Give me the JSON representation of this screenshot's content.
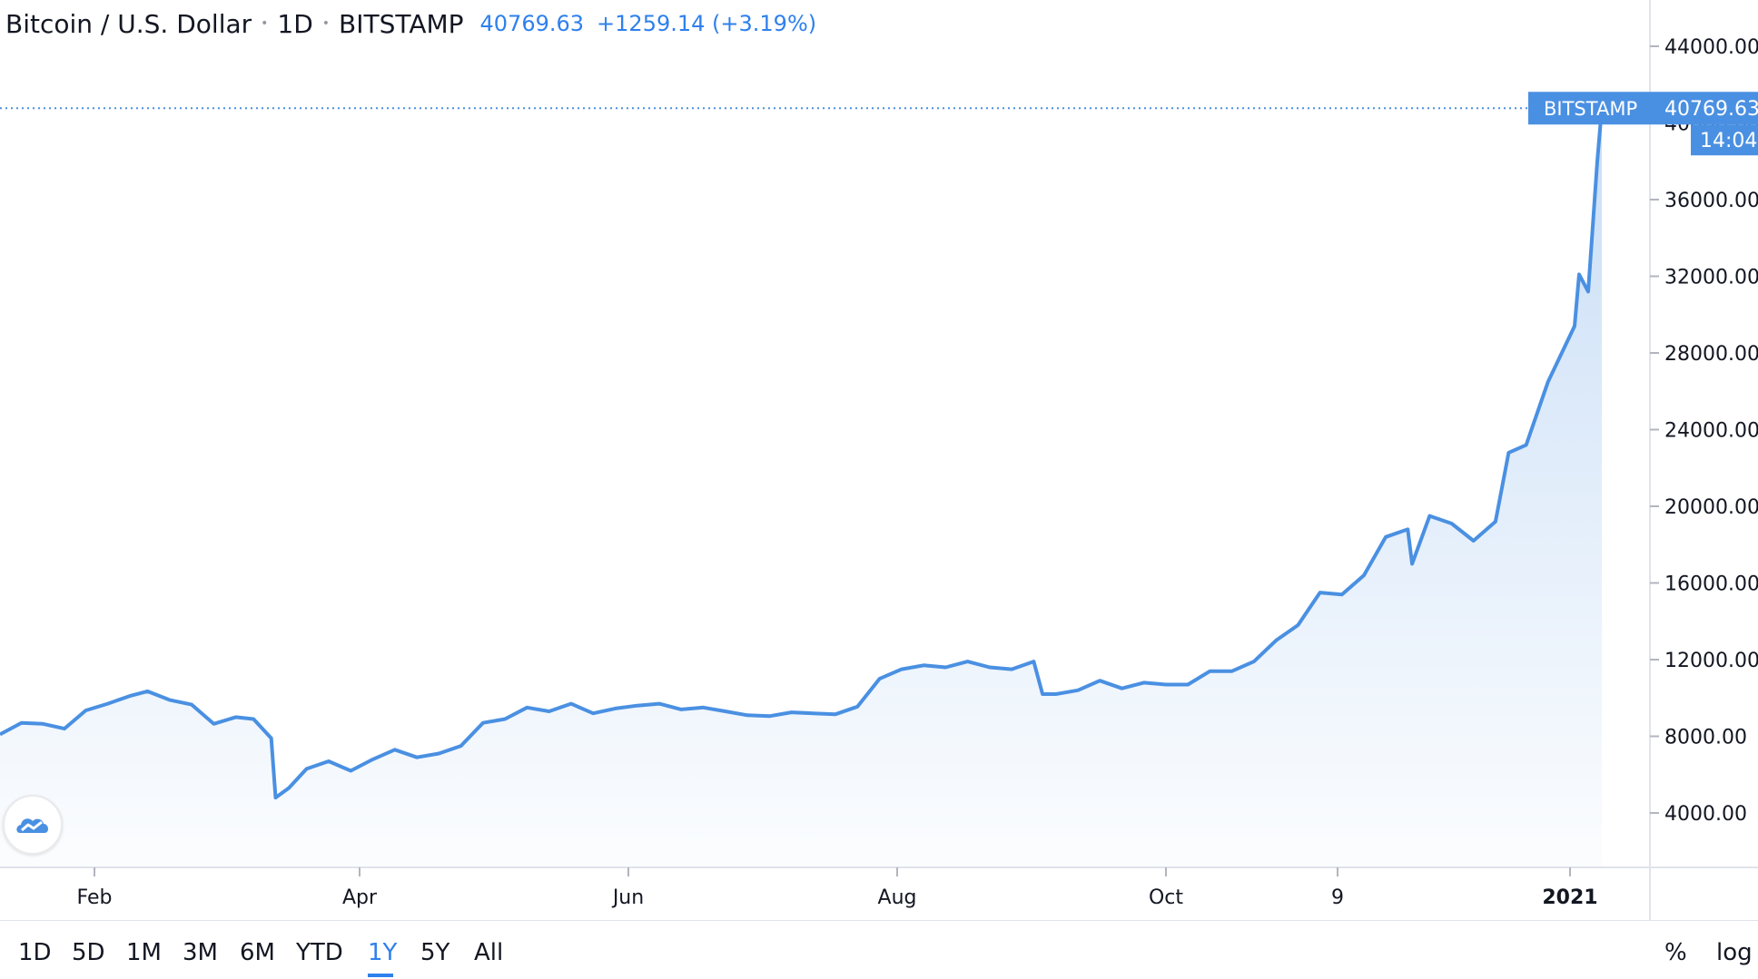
{
  "header": {
    "symbol": "Bitcoin / U.S. Dollar",
    "interval": "1D",
    "exchange": "BITSTAMP",
    "last_price": "40769.63",
    "change": "+1259.14 (+3.19%)"
  },
  "price_label": {
    "exchange": "BITSTAMP",
    "price": "40769.63",
    "countdown": "14:04"
  },
  "range_tabs": [
    "1D",
    "5D",
    "1M",
    "3M",
    "6M",
    "YTD",
    "1Y",
    "5Y",
    "All"
  ],
  "active_range": "1Y",
  "scale_options": {
    "percent": "%",
    "log": "log"
  },
  "colors": {
    "line": "#4a90e2",
    "accent": "#2f80ed",
    "label_bg": "#4a90e2"
  },
  "logo": "tradingview-cloud-icon",
  "chart_data": {
    "type": "area",
    "y_ticks": [
      "44000.00",
      "40000.00",
      "36000.00",
      "32000.00",
      "28000.00",
      "24000.00",
      "20000.00",
      "16000.00",
      "12000.00",
      "8000.00",
      "4000.00"
    ],
    "x_ticks": [
      "Feb",
      "Apr",
      "Jun",
      "Aug",
      "Oct",
      "9",
      "2021"
    ],
    "ylim": [
      1000,
      46500
    ],
    "last_value": 40769.63,
    "x": [
      "2020-01-10",
      "2020-01-15",
      "2020-01-20",
      "2020-01-25",
      "2020-01-30",
      "2020-02-04",
      "2020-02-09",
      "2020-02-13",
      "2020-02-18",
      "2020-02-23",
      "2020-02-28",
      "2020-03-04",
      "2020-03-08",
      "2020-03-12",
      "2020-03-13",
      "2020-03-16",
      "2020-03-20",
      "2020-03-25",
      "2020-03-30",
      "2020-04-04",
      "2020-04-09",
      "2020-04-14",
      "2020-04-19",
      "2020-04-24",
      "2020-04-29",
      "2020-05-04",
      "2020-05-09",
      "2020-05-14",
      "2020-05-19",
      "2020-05-24",
      "2020-05-29",
      "2020-06-03",
      "2020-06-08",
      "2020-06-13",
      "2020-06-18",
      "2020-06-23",
      "2020-06-28",
      "2020-07-03",
      "2020-07-08",
      "2020-07-13",
      "2020-07-18",
      "2020-07-23",
      "2020-07-28",
      "2020-08-02",
      "2020-08-07",
      "2020-08-12",
      "2020-08-17",
      "2020-08-22",
      "2020-08-27",
      "2020-09-01",
      "2020-09-03",
      "2020-09-06",
      "2020-09-11",
      "2020-09-16",
      "2020-09-21",
      "2020-09-26",
      "2020-10-01",
      "2020-10-06",
      "2020-10-11",
      "2020-10-16",
      "2020-10-21",
      "2020-10-26",
      "2020-10-31",
      "2020-11-05",
      "2020-11-10",
      "2020-11-15",
      "2020-11-20",
      "2020-11-25",
      "2020-11-26",
      "2020-11-30",
      "2020-12-05",
      "2020-12-10",
      "2020-12-15",
      "2020-12-18",
      "2020-12-22",
      "2020-12-27",
      "2021-01-02",
      "2021-01-03",
      "2021-01-05",
      "2021-01-07",
      "2021-01-08"
    ],
    "series": [
      {
        "values": [
          8100,
          8700,
          8650,
          8400,
          9350,
          9700,
          10100,
          10350,
          9900,
          9650,
          8650,
          9000,
          8900,
          7900,
          4800,
          5300,
          6300,
          6700,
          6200,
          6800,
          7300,
          6900,
          7100,
          7500,
          8700,
          8900,
          9500,
          9300,
          9700,
          9200,
          9450,
          9600,
          9700,
          9400,
          9500,
          9300,
          9100,
          9050,
          9250,
          9200,
          9150,
          9550,
          11000,
          11500,
          11700,
          11600,
          11900,
          11600,
          11500,
          11900,
          10200,
          10200,
          10400,
          10900,
          10500,
          10800,
          10700,
          10700,
          11400,
          11400,
          11900,
          13000,
          13800,
          15500,
          15400,
          16400,
          18400,
          18800,
          17000,
          19500,
          19100,
          18200,
          19200,
          22800,
          23200,
          26500,
          29400,
          32100,
          31200,
          38000,
          40769.63
        ]
      }
    ]
  }
}
